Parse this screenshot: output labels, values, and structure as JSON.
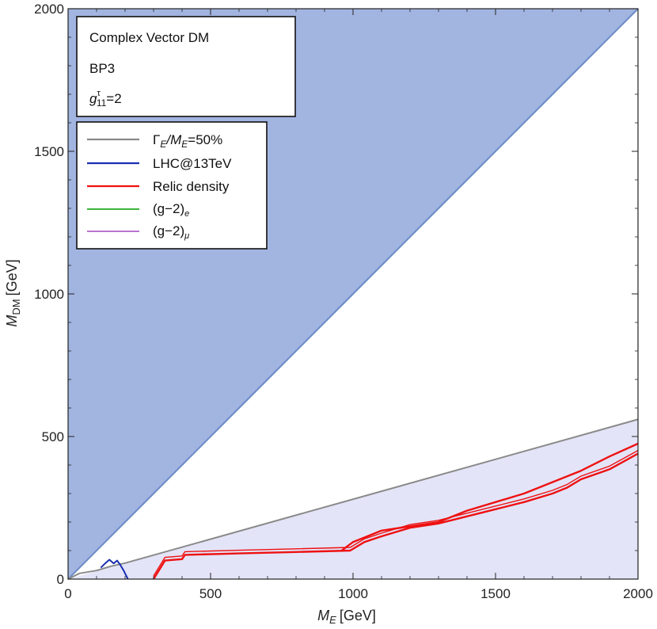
{
  "chart_data": {
    "type": "line",
    "xlabel": "M_E [GeV]",
    "xlabel_main": "M",
    "xlabel_sub": "E",
    "xlabel_unit": "[GeV]",
    "ylabel": "M_DM [GeV]",
    "ylabel_main": "M",
    "ylabel_sub": "DM",
    "ylabel_unit": "[GeV]",
    "xlim": [
      0,
      2000
    ],
    "ylim": [
      0,
      2000
    ],
    "xticks": [
      0,
      500,
      1000,
      1500,
      2000
    ],
    "yticks": [
      0,
      500,
      1000,
      1500,
      2000
    ],
    "info_box": {
      "line1": "Complex Vector DM",
      "line2": "BP3",
      "coupling_symbol": "g",
      "coupling_sup": "τ",
      "coupling_sub": "11",
      "coupling_value": "=2"
    },
    "legend_placement": "top-left",
    "legend": [
      {
        "key": "width",
        "label_main": "Γ",
        "label_sub1": "E",
        "label_mid": "/M",
        "label_sub2": "E",
        "label_tail": "=50%",
        "color": "#8a8a8a"
      },
      {
        "key": "lhc",
        "label": "LHC@13TeV",
        "color": "#1a2fb0"
      },
      {
        "key": "relic",
        "label": "Relic density",
        "color": "#ee1111"
      },
      {
        "key": "ge",
        "label_main": "(g−2)",
        "label_sub": "e",
        "color": "#22aa22"
      },
      {
        "key": "gmu",
        "label_main": "(g−2)",
        "label_sub": "μ",
        "color": "#b060c8"
      }
    ],
    "regions": [
      {
        "name": "excluded-upper",
        "description_points": [
          [
            0,
            0
          ],
          [
            2000,
            2000
          ],
          [
            0,
            2000
          ]
        ],
        "fill": "#a2b4e0",
        "edge": "#6e8fc8"
      },
      {
        "name": "excluded-width",
        "description_points": [
          [
            0,
            0
          ],
          [
            2000,
            560
          ],
          [
            2000,
            0
          ]
        ],
        "fill": "#e4e4f8",
        "edge": "#8a8a8a"
      }
    ],
    "series": [
      {
        "name": "Γ_E/M_E=50%",
        "color": "#8a8a8a",
        "x": [
          0,
          40,
          100,
          150,
          200,
          2000
        ],
        "y": [
          0,
          20,
          30,
          45,
          56,
          560
        ]
      },
      {
        "name": "LHC@13TeV",
        "color": "#1a2fb0",
        "x": [
          115,
          130,
          145,
          160,
          172,
          183,
          195,
          210
        ],
        "y": [
          40,
          55,
          68,
          55,
          65,
          50,
          30,
          0
        ]
      },
      {
        "name": "Relic density",
        "color": "#ee1111",
        "x": [
          300,
          340,
          400,
          410,
          600,
          800,
          990,
          1040,
          1100,
          1200,
          1300,
          1400,
          1500,
          1600,
          1700,
          1750,
          1800,
          1900,
          2000
        ],
        "y": [
          0,
          65,
          70,
          85,
          90,
          95,
          100,
          130,
          150,
          180,
          195,
          220,
          245,
          270,
          300,
          320,
          350,
          385,
          440
        ]
      },
      {
        "name": "Relic density",
        "color": "#ee1111",
        "x": [
          960,
          1000,
          1100,
          1200,
          1300,
          1400,
          1500,
          1600,
          1700,
          1800,
          1900,
          2000
        ],
        "y": [
          100,
          130,
          170,
          185,
          200,
          240,
          270,
          300,
          340,
          380,
          430,
          475
        ]
      }
    ]
  }
}
